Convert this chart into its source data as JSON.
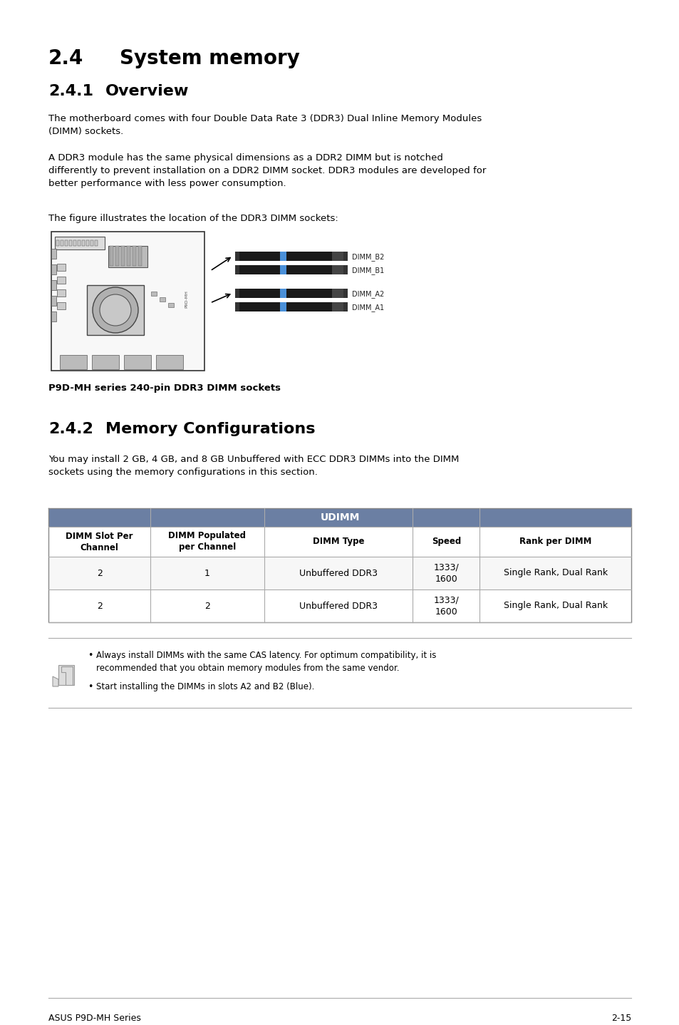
{
  "bg_color": "#ffffff",
  "text_color": "#000000",
  "heading1_text": "2.4",
  "heading1_label": "System memory",
  "heading2_text": "2.4.1",
  "heading2_label": "Overview",
  "para1": "The motherboard comes with four Double Data Rate 3 (DDR3) Dual Inline Memory Modules\n(DIMM) sockets.",
  "para2": "A DDR3 module has the same physical dimensions as a DDR2 DIMM but is notched\ndifferently to prevent installation on a DDR2 DIMM socket. DDR3 modules are developed for\nbetter performance with less power consumption.",
  "para3": "The figure illustrates the location of the DDR3 DIMM sockets:",
  "figure_caption": "P9D-MH series 240-pin DDR3 DIMM sockets",
  "heading3_text": "2.4.2",
  "heading3_label": "Memory Configurations",
  "para4": "You may install 2 GB, 4 GB, and 8 GB Unbuffered with ECC DDR3 DIMMs into the DIMM\nsockets using the memory configurations in this section.",
  "table_header": "UDIMM",
  "table_header_bg": "#6b7fa3",
  "table_header_text": "#ffffff",
  "col_headers": [
    "DIMM Slot Per\nChannel",
    "DIMM Populated\nper Channel",
    "DIMM Type",
    "Speed",
    "Rank per DIMM"
  ],
  "table_rows": [
    [
      "2",
      "1",
      "Unbuffered DDR3",
      "1333/\n1600",
      "Single Rank, Dual Rank"
    ],
    [
      "2",
      "2",
      "Unbuffered DDR3",
      "1333/\n1600",
      "Single Rank, Dual Rank"
    ]
  ],
  "note_bullet1": "Always install DIMMs with the same CAS latency. For optimum compatibility, it is\nrecommended that you obtain memory modules from the same vendor.",
  "note_bullet2": "Start installing the DIMMs in slots A2 and B2 (Blue).",
  "footer_left": "ASUS P9D-MH Series",
  "footer_right": "2-15",
  "dimm_labels": [
    "DIMM_B2",
    "DIMM_B1",
    "DIMM_A2",
    "DIMM_A1"
  ],
  "dimm_blue_color": "#4a90d9",
  "dimm_black_color": "#1a1a1a"
}
